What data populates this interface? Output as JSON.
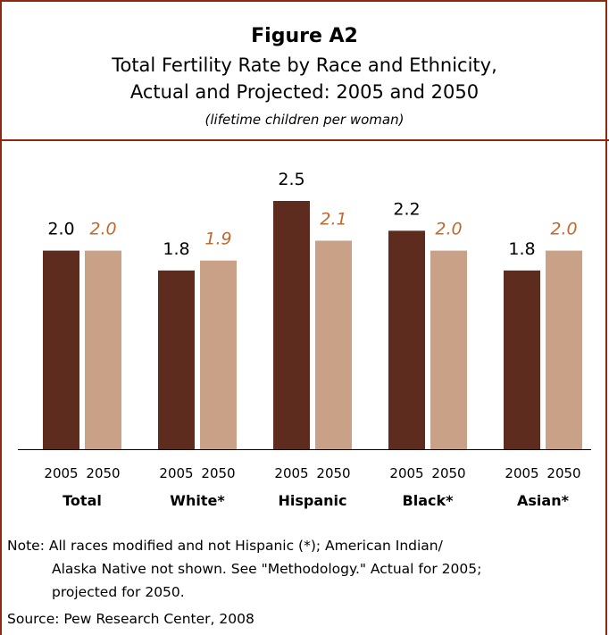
{
  "figure_label": "Figure A2",
  "title_line1": "Total Fertility Rate by Race and Ethnicity,",
  "title_line2": "Actual and Projected: 2005 and 2050",
  "subtitle": "(lifetime children per woman)",
  "colors": {
    "actual": "#5e2c1e",
    "projected": "#c9a186",
    "projected_label": "#c0692d",
    "border": "#8b2a0f"
  },
  "chart_data": {
    "type": "bar",
    "categories": [
      "Total",
      "White*",
      "Hispanic",
      "Black*",
      "Asian*"
    ],
    "year_labels": [
      "2005",
      "2050"
    ],
    "series": [
      {
        "values": [
          2.0,
          1.8,
          2.5,
          2.2,
          1.8
        ],
        "labels": [
          "2.0",
          "1.8",
          "2.5",
          "2.2",
          "1.8"
        ]
      },
      {
        "values": [
          2.0,
          1.9,
          2.1,
          2.0,
          2.0
        ],
        "labels": [
          "2.0",
          "1.9",
          "2.1",
          "2.0",
          "2.0"
        ]
      }
    ],
    "ylim": [
      0,
      2.5
    ]
  },
  "note_line1": "Note: All races modified and not Hispanic (*); American Indian/",
  "note_line2": "Alaska Native not shown.  See \"Methodology.\"  Actual for 2005;",
  "note_line3": "projected for 2050.",
  "source": "Source: Pew Research Center, 2008"
}
